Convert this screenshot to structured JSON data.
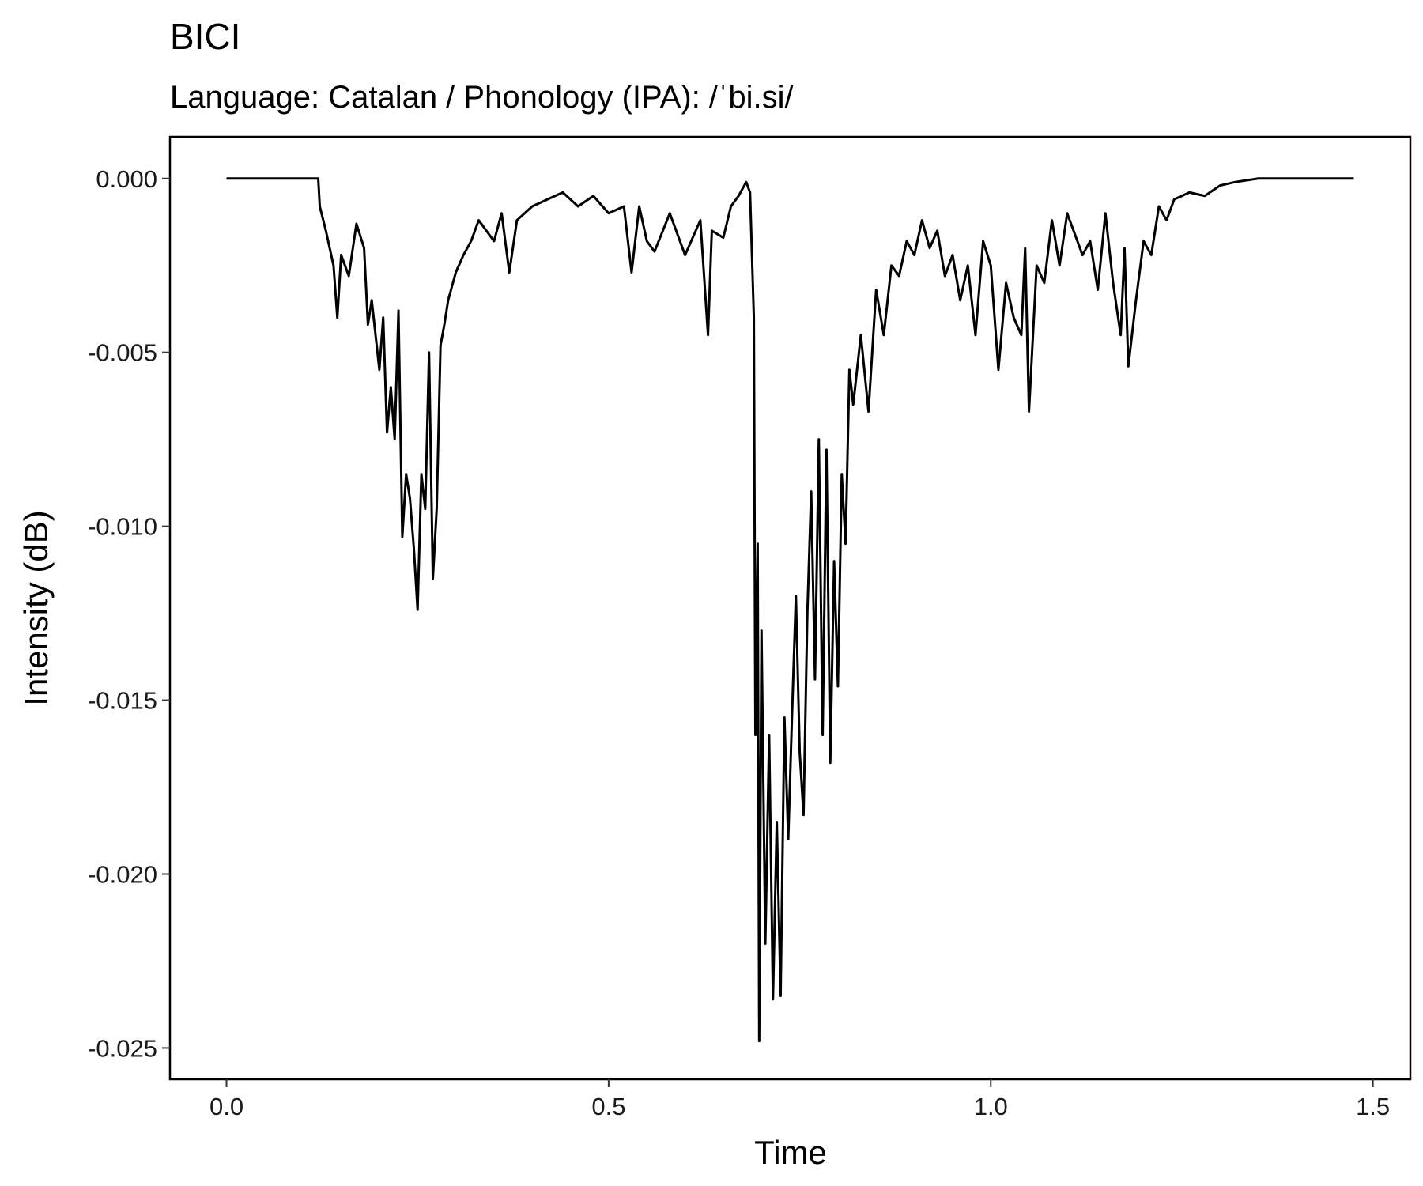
{
  "chart_data": {
    "type": "line",
    "title": "BICI",
    "subtitle": "Language: Catalan / Phonology (IPA): /ˈbi.si/",
    "x_label": "Time",
    "y_label": "Intensity (dB)",
    "xlim": [
      -0.074,
      1.549
    ],
    "ylim": [
      -0.0259,
      0.0012
    ],
    "xticks": [
      {
        "value": 0,
        "label": "0.0"
      },
      0.5,
      {
        "value": 1,
        "label": "1.0"
      },
      1.5
    ],
    "yticks": [
      {
        "value": 0,
        "label": "0.000"
      },
      {
        "value": -0.005,
        "label": "-0.005"
      },
      {
        "value": -0.01,
        "label": "-0.010"
      },
      {
        "value": -0.015,
        "label": "-0.015"
      },
      {
        "value": -0.02,
        "label": "-0.020"
      },
      {
        "value": -0.025,
        "label": "-0.025"
      }
    ],
    "x": [
      0,
      0.1,
      0.12,
      0.122,
      0.13,
      0.14,
      0.145,
      0.15,
      0.16,
      0.17,
      0.18,
      0.185,
      0.19,
      0.2,
      0.205,
      0.21,
      0.215,
      0.22,
      0.225,
      0.23,
      0.235,
      0.24,
      0.245,
      0.25,
      0.255,
      0.26,
      0.265,
      0.27,
      0.275,
      0.28,
      0.285,
      0.29,
      0.3,
      0.31,
      0.32,
      0.33,
      0.35,
      0.36,
      0.37,
      0.38,
      0.4,
      0.42,
      0.44,
      0.46,
      0.48,
      0.5,
      0.52,
      0.53,
      0.54,
      0.55,
      0.56,
      0.58,
      0.6,
      0.62,
      0.63,
      0.635,
      0.65,
      0.66,
      0.67,
      0.68,
      0.685,
      0.69,
      0.692,
      0.695,
      0.697,
      0.7,
      0.705,
      0.71,
      0.715,
      0.72,
      0.725,
      0.73,
      0.735,
      0.74,
      0.745,
      0.75,
      0.755,
      0.76,
      0.765,
      0.77,
      0.775,
      0.78,
      0.785,
      0.79,
      0.795,
      0.8,
      0.805,
      0.81,
      0.815,
      0.82,
      0.83,
      0.84,
      0.85,
      0.86,
      0.87,
      0.88,
      0.89,
      0.9,
      0.91,
      0.92,
      0.93,
      0.94,
      0.95,
      0.96,
      0.97,
      0.98,
      0.99,
      1.0,
      1.01,
      1.02,
      1.03,
      1.04,
      1.045,
      1.05,
      1.06,
      1.07,
      1.08,
      1.09,
      1.1,
      1.12,
      1.13,
      1.14,
      1.15,
      1.16,
      1.17,
      1.175,
      1.18,
      1.19,
      1.2,
      1.21,
      1.22,
      1.23,
      1.24,
      1.26,
      1.28,
      1.3,
      1.32,
      1.35,
      1.4,
      1.475
    ],
    "series": [
      {
        "color": "#000000",
        "values": [
          0,
          0,
          0,
          -0.0008,
          -0.0015,
          -0.0025,
          -0.004,
          -0.0022,
          -0.0028,
          -0.0013,
          -0.002,
          -0.0042,
          -0.0035,
          -0.0055,
          -0.004,
          -0.0073,
          -0.006,
          -0.0075,
          -0.0038,
          -0.0103,
          -0.0085,
          -0.0092,
          -0.0106,
          -0.0124,
          -0.0085,
          -0.0095,
          -0.005,
          -0.0115,
          -0.0095,
          -0.0048,
          -0.0042,
          -0.0035,
          -0.0027,
          -0.0022,
          -0.0018,
          -0.0012,
          -0.0018,
          -0.001,
          -0.0027,
          -0.0012,
          -0.0008,
          -0.0006,
          -0.0004,
          -0.0008,
          -0.0005,
          -0.001,
          -0.0008,
          -0.0027,
          -0.0008,
          -0.0018,
          -0.0021,
          -0.001,
          -0.0022,
          -0.0012,
          -0.0045,
          -0.0015,
          -0.0017,
          -0.0008,
          -0.0005,
          -0.0001,
          -0.0004,
          -0.004,
          -0.016,
          -0.0105,
          -0.0248,
          -0.013,
          -0.022,
          -0.016,
          -0.0236,
          -0.0185,
          -0.0235,
          -0.0155,
          -0.019,
          -0.0154,
          -0.012,
          -0.0165,
          -0.0183,
          -0.0125,
          -0.009,
          -0.0144,
          -0.0075,
          -0.016,
          -0.0078,
          -0.0168,
          -0.011,
          -0.0146,
          -0.0085,
          -0.0105,
          -0.0055,
          -0.0065,
          -0.0045,
          -0.0067,
          -0.0032,
          -0.0045,
          -0.0025,
          -0.0028,
          -0.0018,
          -0.0022,
          -0.0012,
          -0.002,
          -0.0015,
          -0.0028,
          -0.0022,
          -0.0035,
          -0.0025,
          -0.0045,
          -0.0018,
          -0.0025,
          -0.0055,
          -0.003,
          -0.004,
          -0.0045,
          -0.002,
          -0.0067,
          -0.0025,
          -0.003,
          -0.0012,
          -0.0025,
          -0.001,
          -0.0022,
          -0.0018,
          -0.0032,
          -0.001,
          -0.003,
          -0.0045,
          -0.002,
          -0.0054,
          -0.0035,
          -0.0018,
          -0.0022,
          -0.0008,
          -0.0012,
          -0.0006,
          -0.0004,
          -0.0005,
          -0.0002,
          -0.0001,
          0,
          0,
          0
        ]
      }
    ]
  }
}
